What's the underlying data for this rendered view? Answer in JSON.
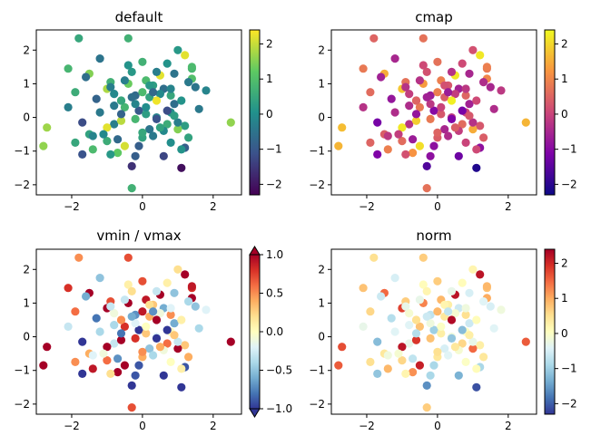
{
  "chart_data": [
    {
      "type": "scatter",
      "title": "default",
      "colormap": "viridis",
      "xlim": [
        -3.0,
        2.8
      ],
      "ylim": [
        -2.3,
        2.6
      ],
      "xticks": [
        -2,
        0,
        2
      ],
      "yticks": [
        -2,
        -1,
        0,
        1,
        2
      ],
      "colorbar": {
        "range": [
          -2.3,
          2.4
        ],
        "ticks": [
          -2,
          -1,
          0,
          1,
          2
        ],
        "extend": "neither"
      }
    },
    {
      "type": "scatter",
      "title": "cmap",
      "colormap": "plasma",
      "xlim": [
        -3.0,
        2.8
      ],
      "ylim": [
        -2.3,
        2.6
      ],
      "xticks": [
        -2,
        0,
        2
      ],
      "yticks": [
        -2,
        -1,
        0,
        1,
        2
      ],
      "colorbar": {
        "range": [
          -2.3,
          2.4
        ],
        "ticks": [
          -2,
          -1,
          0,
          1,
          2
        ],
        "extend": "neither"
      }
    },
    {
      "type": "scatter",
      "title": "vmin / vmax",
      "colormap": "RdYlBu_r",
      "xlim": [
        -3.0,
        2.8
      ],
      "ylim": [
        -2.3,
        2.6
      ],
      "xticks": [
        -2,
        0,
        2
      ],
      "yticks": [
        -2,
        -1,
        0,
        1,
        2
      ],
      "colorbar": {
        "range": [
          -1.0,
          1.0
        ],
        "ticks": [
          -1.0,
          -0.5,
          0.0,
          0.5,
          1.0
        ],
        "extend": "both"
      }
    },
    {
      "type": "scatter",
      "title": "norm",
      "colormap": "RdYlBu_r",
      "xlim": [
        -3.0,
        2.8
      ],
      "ylim": [
        -2.3,
        2.6
      ],
      "xticks": [
        -2,
        0,
        2
      ],
      "yticks": [
        -2,
        -1,
        0,
        1,
        2
      ],
      "colorbar": {
        "range": [
          -2.3,
          2.4
        ],
        "ticks": [
          -2,
          -1,
          0,
          1,
          2
        ],
        "extend": "neither"
      }
    }
  ],
  "points": {
    "x": [
      -1.8,
      -2.1,
      -1.9,
      -1.7,
      -1.5,
      -1.4,
      -1.2,
      -1.0,
      -0.9,
      -0.8,
      -0.7,
      -0.6,
      -0.5,
      -0.4,
      -0.3,
      -0.2,
      -0.1,
      0.0,
      0.1,
      0.2,
      0.3,
      0.4,
      0.5,
      0.6,
      0.7,
      0.8,
      0.9,
      1.0,
      1.1,
      1.2,
      1.4,
      1.6,
      1.8,
      -2.8,
      -2.7,
      -2.1,
      -1.9,
      -1.6,
      -1.5,
      -1.3,
      -1.0,
      -0.8,
      -0.6,
      -0.4,
      -0.3,
      -0.2,
      0.0,
      0.2,
      0.4,
      0.6,
      0.8,
      1.0,
      1.2,
      1.4,
      2.5,
      -1.2,
      -0.9,
      -0.7,
      -0.5,
      -0.3,
      -0.1,
      0.1,
      0.3,
      0.5,
      0.7,
      0.9,
      1.1,
      1.3,
      -0.4,
      0.0,
      0.4,
      0.8,
      1.2,
      -0.6,
      0.2,
      1.0,
      -1.0,
      -0.2,
      0.6,
      1.4,
      -1.4,
      -0.8,
      0.3,
      0.9,
      -0.3,
      0.5,
      1.1,
      -0.5,
      0.1,
      0.7,
      -0.9,
      1.5,
      -1.1,
      0.0,
      0.4,
      -0.6,
      0.8,
      -0.2,
      1.3,
      -1.7
    ],
    "y": [
      2.35,
      1.45,
      0.75,
      -0.15,
      1.3,
      -0.95,
      0.15,
      0.85,
      1.05,
      -0.2,
      -1.05,
      0.5,
      -0.85,
      1.55,
      -1.45,
      0.65,
      0.2,
      -0.6,
      1.1,
      -0.35,
      0.95,
      0.0,
      1.25,
      -1.15,
      1.6,
      -0.75,
      0.4,
      2.0,
      -1.5,
      -0.25,
      1.45,
      0.25,
      0.8,
      -0.85,
      -0.3,
      0.3,
      -0.75,
      1.2,
      -0.5,
      0.55,
      -0.3,
      0.7,
      -0.1,
      1.0,
      -2.1,
      0.4,
      -0.45,
      0.6,
      -0.05,
      0.85,
      0.15,
      -0.35,
      -0.9,
      1.15,
      -0.15,
      1.75,
      0.9,
      -0.65,
      0.3,
      1.35,
      -0.85,
      0.1,
      -0.55,
      0.7,
      -0.2,
      1.3,
      0.5,
      -0.6,
      2.35,
      0.75,
      0.5,
      0.65,
      1.85,
      0.1,
      0.95,
      -0.15,
      -0.7,
      -1.15,
      -0.4,
      1.5,
      -0.55,
      0.35,
      0.75,
      0.05,
      0.6,
      -0.3,
      -0.95,
      1.1,
      0.3,
      0.2,
      -1.1,
      0.9,
      -0.5,
      1.65,
      1.35,
      0.5,
      0.85,
      -0.05,
      1.05,
      -1.1
    ],
    "c": [
      0.5,
      0.8,
      0.6,
      -1.2,
      1.5,
      0.9,
      -0.4,
      1.8,
      0.7,
      -0.3,
      1.2,
      0.2,
      2.1,
      0.1,
      -1.6,
      -0.7,
      -1.0,
      0.4,
      0.9,
      -0.5,
      0.3,
      -0.2,
      2.2,
      -1.3,
      0.1,
      0.0,
      -0.6,
      0.2,
      -2.1,
      0.3,
      0.8,
      -0.4,
      -0.2,
      1.6,
      1.7,
      -0.3,
      0.5,
      -0.6,
      0.4,
      -0.8,
      2.2,
      -0.1,
      1.9,
      1.3,
      0.7,
      -0.2,
      0.5,
      0.4,
      -1.1,
      -0.6,
      0.0,
      1.5,
      -0.9,
      1.0,
      1.6,
      -0.5,
      -0.3,
      -0.7,
      0.8,
      0.2,
      -0.9,
      0.3,
      -0.4,
      -0.1,
      0.6,
      -0.5,
      0.1,
      0.4,
      0.7,
      0.9,
      2.3,
      0.5,
      2.2,
      -0.8,
      0.2,
      -0.3,
      0.6,
      -0.9,
      -0.1,
      0.9,
      -0.2,
      -0.4,
      -0.7,
      0.3,
      -0.6,
      0.4,
      0.1,
      -0.3,
      0.0,
      -1.2,
      0.2,
      -0.5,
      -0.1,
      0.7,
      -0.3,
      0.5,
      -0.2,
      0.8,
      -0.4,
      -1.1
    ]
  }
}
